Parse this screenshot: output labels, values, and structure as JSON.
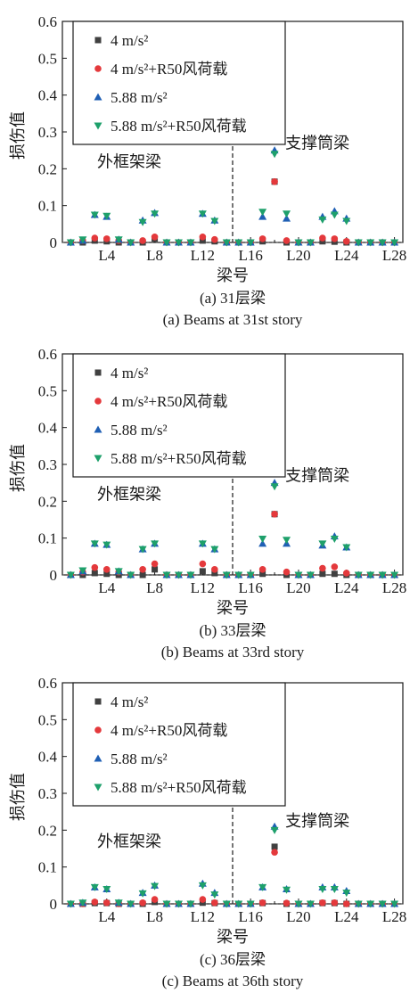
{
  "colors": {
    "s1": "#404040",
    "s2": "#e4393c",
    "s3": "#1f5fb4",
    "s4": "#1ea06b",
    "axis": "#1a1a1a"
  },
  "chart_data": [
    {
      "type": "scatter",
      "title": "(a) 31层梁",
      "subtitle": "(a) Beams at 31st story",
      "xlabel": "梁号",
      "ylabel": "损伤值",
      "ylim": [
        0,
        0.6
      ],
      "yticks": [
        "0",
        "0.1",
        "0.2",
        "0.3",
        "0.4",
        "0.5",
        "0.6"
      ],
      "xticks": [
        "L4",
        "L8",
        "L12",
        "L16",
        "L20",
        "L24",
        "L28"
      ],
      "annotations": [
        "外框架梁",
        "支撑筒梁"
      ],
      "legend_position": "top-left",
      "series": [
        {
          "name": "4 m/s²",
          "marker": "square",
          "x": [
            1,
            2,
            3,
            4,
            5,
            6,
            7,
            8,
            9,
            10,
            11,
            12,
            13,
            14,
            15,
            16,
            17,
            18,
            19,
            20,
            21,
            22,
            23,
            24,
            25,
            26,
            27,
            28
          ],
          "y": [
            0,
            0,
            0.005,
            0.003,
            0,
            0,
            0,
            0.01,
            0,
            0,
            0,
            0.005,
            0.003,
            0,
            0,
            0,
            0.003,
            0.165,
            0,
            0,
            0,
            0.003,
            0.002,
            0,
            0,
            0,
            0,
            0
          ]
        },
        {
          "name": "4 m/s²+R50风荷载",
          "marker": "circle",
          "x": [
            1,
            2,
            3,
            4,
            5,
            6,
            7,
            8,
            9,
            10,
            11,
            12,
            13,
            14,
            15,
            16,
            17,
            18,
            19,
            20,
            21,
            22,
            23,
            24,
            25,
            26,
            27,
            28
          ],
          "y": [
            0,
            0.005,
            0.012,
            0.01,
            0.005,
            0,
            0.005,
            0.015,
            0,
            0,
            0,
            0.015,
            0.008,
            0,
            0,
            0,
            0.01,
            0.165,
            0.005,
            0,
            0,
            0.012,
            0.01,
            0.003,
            0,
            0,
            0,
            0
          ]
        },
        {
          "name": "5.88 m/s²",
          "marker": "triangle-up",
          "x": [
            1,
            2,
            3,
            4,
            5,
            6,
            7,
            8,
            9,
            10,
            11,
            12,
            13,
            14,
            15,
            16,
            17,
            18,
            19,
            20,
            21,
            22,
            23,
            24,
            25,
            26,
            27,
            28
          ],
          "y": [
            0,
            0.005,
            0.075,
            0.07,
            0.008,
            0,
            0.06,
            0.08,
            0,
            0,
            0,
            0.078,
            0.06,
            0,
            0,
            0,
            0.07,
            0.25,
            0.065,
            0,
            0,
            0.07,
            0.085,
            0.065,
            0,
            0,
            0,
            0
          ]
        },
        {
          "name": "5.88 m/s²+R50风荷载",
          "marker": "triangle-down",
          "x": [
            1,
            2,
            3,
            4,
            5,
            6,
            7,
            8,
            9,
            10,
            11,
            12,
            13,
            14,
            15,
            16,
            17,
            18,
            19,
            20,
            21,
            22,
            23,
            24,
            25,
            26,
            27,
            28
          ],
          "y": [
            0,
            0.008,
            0.075,
            0.072,
            0.008,
            0,
            0.055,
            0.078,
            0,
            0,
            0,
            0.078,
            0.058,
            0,
            0,
            0,
            0.083,
            0.24,
            0.078,
            0,
            0,
            0.062,
            0.075,
            0.058,
            0,
            0,
            0,
            0
          ]
        }
      ]
    },
    {
      "type": "scatter",
      "title": "(b) 33层梁",
      "subtitle": "(b) Beams at 33rd story",
      "xlabel": "梁号",
      "ylabel": "损伤值",
      "ylim": [
        0,
        0.6
      ],
      "yticks": [
        "0",
        "0.1",
        "0.2",
        "0.3",
        "0.4",
        "0.5",
        "0.6"
      ],
      "xticks": [
        "L4",
        "L8",
        "L12",
        "L16",
        "L20",
        "L24",
        "L28"
      ],
      "annotations": [
        "外框架梁",
        "支撑筒梁"
      ],
      "legend_position": "top-left",
      "series": [
        {
          "name": "4 m/s²",
          "marker": "square",
          "x": [
            1,
            2,
            3,
            4,
            5,
            6,
            7,
            8,
            9,
            10,
            11,
            12,
            13,
            14,
            15,
            16,
            17,
            18,
            19,
            20,
            21,
            22,
            23,
            24,
            25,
            26,
            27,
            28
          ],
          "y": [
            0,
            0,
            0.005,
            0.003,
            0,
            0,
            0,
            0.015,
            0,
            0,
            0,
            0.01,
            0.005,
            0,
            0,
            0,
            0.003,
            0.165,
            0,
            0,
            0,
            0.003,
            0.003,
            0,
            0,
            0,
            0,
            0
          ]
        },
        {
          "name": "4 m/s²+R50风荷载",
          "marker": "circle",
          "x": [
            1,
            2,
            3,
            4,
            5,
            6,
            7,
            8,
            9,
            10,
            11,
            12,
            13,
            14,
            15,
            16,
            17,
            18,
            19,
            20,
            21,
            22,
            23,
            24,
            25,
            26,
            27,
            28
          ],
          "y": [
            0,
            0.008,
            0.02,
            0.015,
            0.008,
            0,
            0.015,
            0.03,
            0,
            0,
            0,
            0.03,
            0.015,
            0,
            0,
            0,
            0.015,
            0.165,
            0.008,
            0,
            0,
            0.018,
            0.022,
            0.005,
            0,
            0,
            0,
            0
          ]
        },
        {
          "name": "5.88 m/s²",
          "marker": "triangle-up",
          "x": [
            1,
            2,
            3,
            4,
            5,
            6,
            7,
            8,
            9,
            10,
            11,
            12,
            13,
            14,
            15,
            16,
            17,
            18,
            19,
            20,
            21,
            22,
            23,
            24,
            25,
            26,
            27,
            28
          ],
          "y": [
            0,
            0.01,
            0.085,
            0.082,
            0.01,
            0,
            0.07,
            0.085,
            0,
            0,
            0,
            0.085,
            0.07,
            0,
            0,
            0,
            0.085,
            0.25,
            0.085,
            0,
            0,
            0.08,
            0.105,
            0.075,
            0,
            0,
            0,
            0
          ]
        },
        {
          "name": "5.88 m/s²+R50风荷载",
          "marker": "triangle-down",
          "x": [
            1,
            2,
            3,
            4,
            5,
            6,
            7,
            8,
            9,
            10,
            11,
            12,
            13,
            14,
            15,
            16,
            17,
            18,
            19,
            20,
            21,
            22,
            23,
            24,
            25,
            26,
            27,
            28
          ],
          "y": [
            0,
            0.012,
            0.085,
            0.082,
            0.01,
            0,
            0.07,
            0.085,
            0,
            0,
            0,
            0.085,
            0.07,
            0,
            0,
            0,
            0.098,
            0.24,
            0.095,
            0,
            0,
            0.085,
            0.098,
            0.075,
            0,
            0,
            0,
            0
          ]
        }
      ]
    },
    {
      "type": "scatter",
      "title": "(c) 36层梁",
      "subtitle": "(c) Beams at 36th story",
      "xlabel": "梁号",
      "ylabel": "损伤值",
      "ylim": [
        0,
        0.6
      ],
      "yticks": [
        "0",
        "0.1",
        "0.2",
        "0.3",
        "0.4",
        "0.5",
        "0.6"
      ],
      "xticks": [
        "L4",
        "L8",
        "L12",
        "L16",
        "L20",
        "L24",
        "L28"
      ],
      "annotations": [
        "外框架梁",
        "支撑筒梁"
      ],
      "legend_position": "top-left",
      "series": [
        {
          "name": "4 m/s²",
          "marker": "square",
          "x": [
            1,
            2,
            3,
            4,
            5,
            6,
            7,
            8,
            9,
            10,
            11,
            12,
            13,
            14,
            15,
            16,
            17,
            18,
            19,
            20,
            21,
            22,
            23,
            24,
            25,
            26,
            27,
            28
          ],
          "y": [
            0,
            0,
            0.002,
            0.002,
            0,
            0,
            0,
            0.005,
            0,
            0,
            0,
            0.003,
            0.002,
            0,
            0,
            0,
            0.002,
            0.155,
            0,
            0,
            0,
            0.002,
            0.002,
            0,
            0,
            0,
            0,
            0
          ]
        },
        {
          "name": "4 m/s²+R50风荷载",
          "marker": "circle",
          "x": [
            1,
            2,
            3,
            4,
            5,
            6,
            7,
            8,
            9,
            10,
            11,
            12,
            13,
            14,
            15,
            16,
            17,
            18,
            19,
            20,
            21,
            22,
            23,
            24,
            25,
            26,
            27,
            28
          ],
          "y": [
            0,
            0,
            0.005,
            0.003,
            0,
            0,
            0.003,
            0.012,
            0,
            0,
            0,
            0.012,
            0.003,
            0,
            0,
            0,
            0.003,
            0.14,
            0.002,
            0,
            0,
            0.003,
            0.003,
            0,
            0,
            0,
            0,
            0
          ]
        },
        {
          "name": "5.88 m/s²",
          "marker": "triangle-up",
          "x": [
            1,
            2,
            3,
            4,
            5,
            6,
            7,
            8,
            9,
            10,
            11,
            12,
            13,
            14,
            15,
            16,
            17,
            18,
            19,
            20,
            21,
            22,
            23,
            24,
            25,
            26,
            27,
            28
          ],
          "y": [
            0,
            0.003,
            0.045,
            0.04,
            0.003,
            0,
            0.03,
            0.05,
            0,
            0,
            0,
            0.055,
            0.03,
            0,
            0,
            0,
            0.045,
            0.21,
            0.04,
            0,
            0,
            0.045,
            0.045,
            0.035,
            0,
            0,
            0,
            0
          ]
        },
        {
          "name": "5.88 m/s²+R50风荷载",
          "marker": "triangle-down",
          "x": [
            1,
            2,
            3,
            4,
            5,
            6,
            7,
            8,
            9,
            10,
            11,
            12,
            13,
            14,
            15,
            16,
            17,
            18,
            19,
            20,
            21,
            22,
            23,
            24,
            25,
            26,
            27,
            28
          ],
          "y": [
            0,
            0.003,
            0.045,
            0.04,
            0.003,
            0,
            0.028,
            0.048,
            0,
            0,
            0,
            0.05,
            0.025,
            0,
            0,
            0,
            0.045,
            0.2,
            0.038,
            0,
            0,
            0.04,
            0.04,
            0.03,
            0,
            0,
            0,
            0
          ]
        }
      ]
    }
  ]
}
